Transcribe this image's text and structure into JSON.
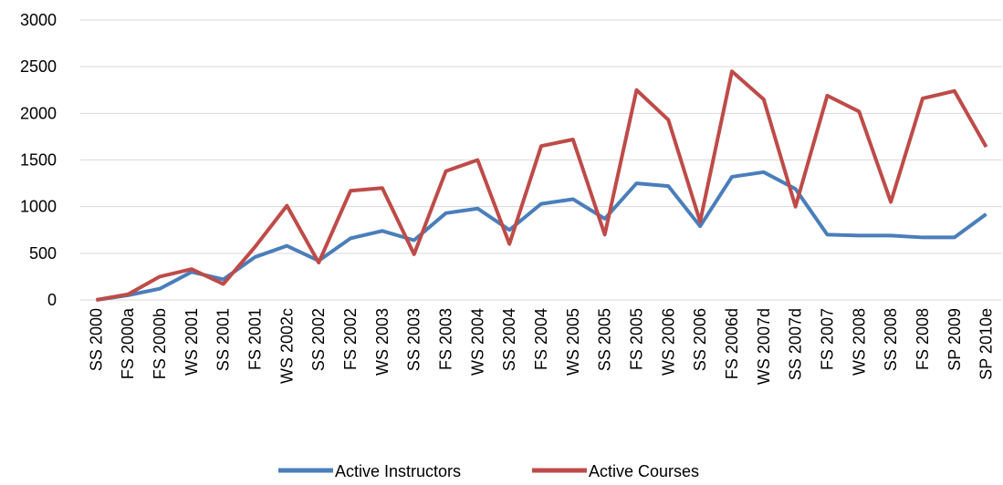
{
  "chart_data": {
    "type": "line",
    "categories": [
      "SS 2000",
      "FS 2000a",
      "FS 2000b",
      "WS 2001",
      "SS 2001",
      "FS 2001",
      "WS 2002c",
      "SS 2002",
      "FS 2002",
      "WS 2003",
      "SS 2003",
      "FS 2003",
      "WS 2004",
      "SS 2004",
      "FS 2004",
      "WS 2005",
      "SS 2005",
      "FS 2005",
      "WS 2006",
      "SS 2006",
      "FS 2006d",
      "WS 2007d",
      "SS 2007d",
      "FS 2007",
      "WS 2008",
      "SS 2008",
      "FS 2008",
      "SP 2009",
      "SP 2010e"
    ],
    "series": [
      {
        "name": "Active Instructors",
        "color": "#4a7ebb",
        "values": [
          0,
          50,
          120,
          300,
          220,
          460,
          580,
          420,
          660,
          740,
          640,
          930,
          980,
          750,
          1030,
          1080,
          870,
          1250,
          1220,
          790,
          1320,
          1370,
          1190,
          700,
          690,
          690,
          670,
          670,
          920
        ]
      },
      {
        "name": "Active Courses",
        "color": "#be4b48",
        "values": [
          0,
          60,
          250,
          330,
          170,
          570,
          1010,
          400,
          1170,
          1200,
          490,
          1380,
          1500,
          600,
          1650,
          1720,
          700,
          2250,
          1930,
          840,
          2450,
          2150,
          1000,
          2190,
          2020,
          1050,
          2160,
          2240,
          1640
        ]
      }
    ],
    "ylim": [
      0,
      3000
    ],
    "yticks": [
      0,
      500,
      1000,
      1500,
      2000,
      2500,
      3000
    ],
    "grid": true,
    "legend": "bottom"
  }
}
